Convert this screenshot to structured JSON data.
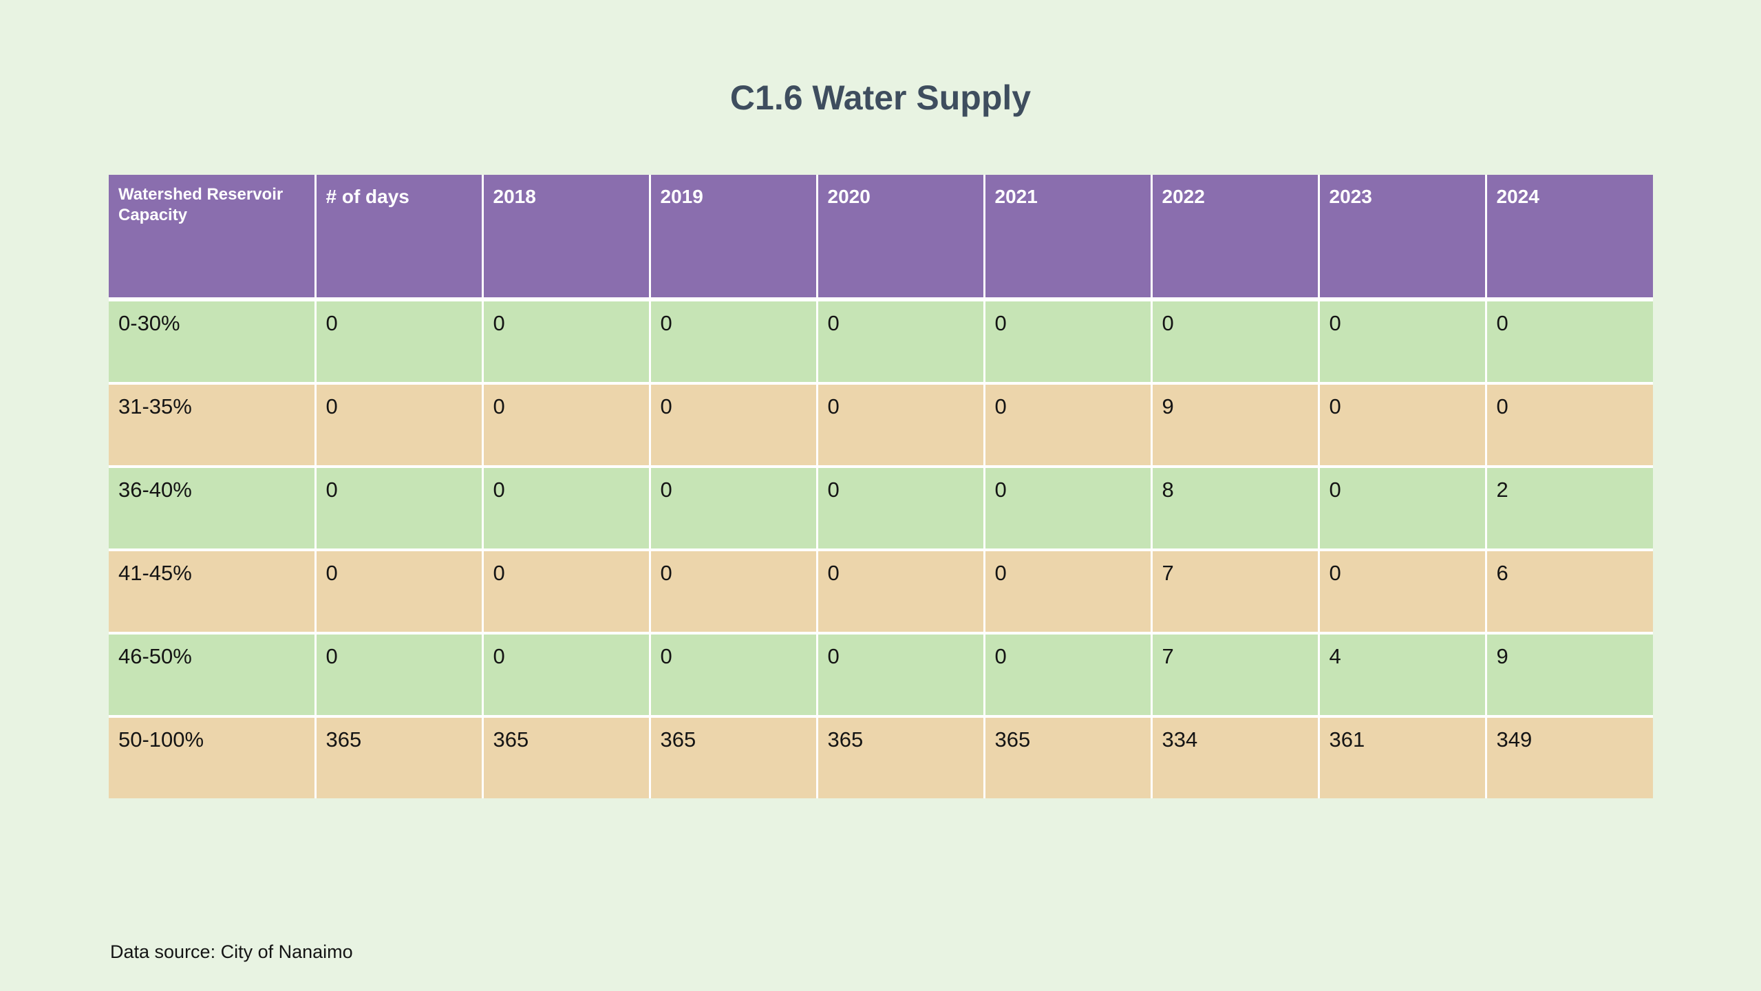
{
  "title": "C1.6 Water Supply",
  "source_note": "Data source: City of Nanaimo",
  "colors": {
    "page_bg": "#e8f3e2",
    "header_bg": "#8a6eae",
    "header_text": "#ffffff",
    "row_green": "#c6e4b5",
    "row_tan": "#ecd5ab",
    "grid_line": "#ffffff",
    "title_text": "#3e4d5e",
    "body_text": "#141414"
  },
  "chart_data": {
    "type": "table",
    "title": "C1.6 Water Supply",
    "columns": [
      "Watershed Reservoir Capacity",
      "# of days",
      "2018",
      "2019",
      "2020",
      "2021",
      "2022",
      "2023",
      "2024"
    ],
    "rows": [
      [
        "0-30%",
        "0",
        "0",
        "0",
        "0",
        "0",
        "0",
        "0",
        "0"
      ],
      [
        "31-35%",
        "0",
        "0",
        "0",
        "0",
        "0",
        "9",
        "0",
        "0"
      ],
      [
        "36-40%",
        "0",
        "0",
        "0",
        "0",
        "0",
        "8",
        "0",
        "2"
      ],
      [
        "41-45%",
        "0",
        "0",
        "0",
        "0",
        "0",
        "7",
        "0",
        "6"
      ],
      [
        "46-50%",
        "0",
        "0",
        "0",
        "0",
        "0",
        "7",
        "4",
        "9"
      ],
      [
        "50-100%",
        "365",
        "365",
        "365",
        "365",
        "365",
        "334",
        "361",
        "349"
      ]
    ],
    "layout": {
      "row_stripes": [
        "green",
        "tan"
      ],
      "header_style": "purple",
      "grid": "white-lines",
      "legend": "none"
    }
  }
}
